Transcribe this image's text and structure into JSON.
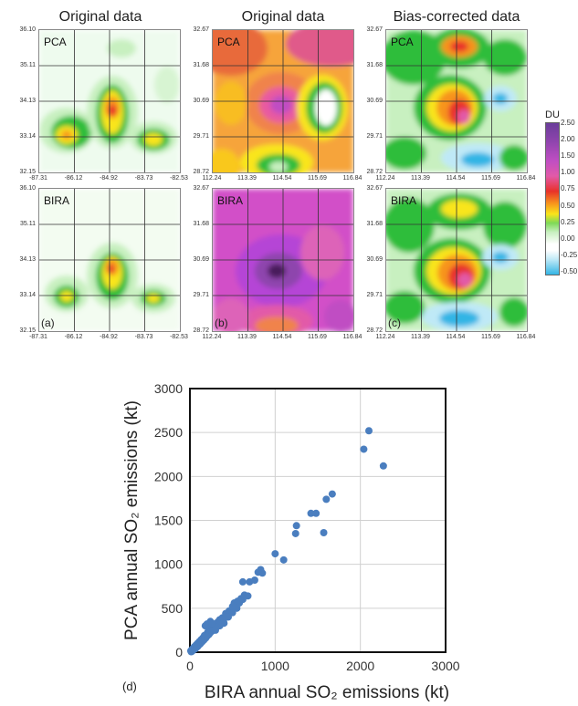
{
  "headers": {
    "col1": "Original data",
    "col2": "Original data",
    "col3": "Bias-corrected data"
  },
  "panels": [
    {
      "id": "a-pca",
      "label": "PCA",
      "letter": "",
      "yticks": [
        "36.10",
        "35.11",
        "34.13",
        "33.14",
        "32.15"
      ],
      "xticks": [
        "-87.31",
        "-86.12",
        "-84.92",
        "-83.73",
        "-82.53"
      ]
    },
    {
      "id": "a-bira",
      "label": "BIRA",
      "letter": "(a)",
      "yticks": [
        "36.10",
        "35.11",
        "34.13",
        "33.14",
        "32.15"
      ],
      "xticks": [
        "-87.31",
        "-86.12",
        "-84.92",
        "-83.73",
        "-82.53"
      ]
    },
    {
      "id": "b-pca",
      "label": "PCA",
      "letter": "",
      "yticks": [
        "32.67",
        "31.68",
        "30.69",
        "29.71",
        "28.72"
      ],
      "xticks": [
        "112.24",
        "113.39",
        "114.54",
        "115.69",
        "116.84"
      ]
    },
    {
      "id": "b-bira",
      "label": "BIRA",
      "letter": "(b)",
      "yticks": [
        "32.67",
        "31.68",
        "30.69",
        "29.71",
        "28.72"
      ],
      "xticks": [
        "112.24",
        "113.39",
        "114.54",
        "115.69",
        "116.84"
      ]
    },
    {
      "id": "c-pca",
      "label": "PCA",
      "letter": "",
      "yticks": [
        "32.67",
        "31.68",
        "30.69",
        "29.71",
        "28.72"
      ],
      "xticks": [
        "112.24",
        "113.39",
        "114.54",
        "115.69",
        "116.84"
      ]
    },
    {
      "id": "c-bira",
      "label": "BIRA",
      "letter": "(c)",
      "yticks": [
        "32.67",
        "31.68",
        "30.69",
        "29.71",
        "28.72"
      ],
      "xticks": [
        "112.24",
        "113.39",
        "114.54",
        "115.69",
        "116.84"
      ]
    }
  ],
  "colorbar": {
    "title": "DU",
    "ticks": [
      "2.50",
      "2.00",
      "1.50",
      "1.00",
      "0.75",
      "0.50",
      "0.25",
      "0.00",
      "-0.25",
      "-0.50"
    ]
  },
  "colors": {
    "purple": "#6a3d9a",
    "magenta": "#d24fc8",
    "red": "#e8312a",
    "orange": "#f7941d",
    "yellow": "#f9e51a",
    "green": "#2ebd3a",
    "lightgreen": "#c8f0c0",
    "white": "#ffffff",
    "cyan": "#33b5e5"
  },
  "chart_data": {
    "type": "scatter",
    "panel_letter": "(d)",
    "xlabel": "BIRA annual SO₂ emissions (kt)",
    "ylabel": "PCA annual SO₂ emissions (kt)",
    "xlim": [
      0,
      3000
    ],
    "ylim": [
      0,
      3000
    ],
    "xticks": [
      "0",
      "1000",
      "2000",
      "3000"
    ],
    "yticks": [
      "0",
      "500",
      "1000",
      "1500",
      "2000",
      "2500",
      "3000"
    ],
    "grid": true,
    "points": [
      [
        10,
        15
      ],
      [
        20,
        25
      ],
      [
        30,
        35
      ],
      [
        40,
        45
      ],
      [
        50,
        60
      ],
      [
        60,
        55
      ],
      [
        70,
        80
      ],
      [
        80,
        75
      ],
      [
        90,
        100
      ],
      [
        100,
        95
      ],
      [
        110,
        120
      ],
      [
        120,
        110
      ],
      [
        130,
        140
      ],
      [
        140,
        130
      ],
      [
        150,
        160
      ],
      [
        160,
        150
      ],
      [
        170,
        190
      ],
      [
        180,
        170
      ],
      [
        190,
        200
      ],
      [
        200,
        185
      ],
      [
        210,
        230
      ],
      [
        220,
        210
      ],
      [
        230,
        240
      ],
      [
        240,
        225
      ],
      [
        250,
        270
      ],
      [
        260,
        250
      ],
      [
        270,
        280
      ],
      [
        280,
        265
      ],
      [
        290,
        310
      ],
      [
        300,
        290
      ],
      [
        310,
        330
      ],
      [
        320,
        305
      ],
      [
        330,
        345
      ],
      [
        340,
        320
      ],
      [
        350,
        370
      ],
      [
        360,
        350
      ],
      [
        380,
        390
      ],
      [
        400,
        380
      ],
      [
        420,
        440
      ],
      [
        440,
        430
      ],
      [
        460,
        470
      ],
      [
        480,
        460
      ],
      [
        500,
        520
      ],
      [
        520,
        560
      ],
      [
        540,
        530
      ],
      [
        560,
        580
      ],
      [
        580,
        560
      ],
      [
        600,
        610
      ],
      [
        620,
        600
      ],
      [
        640,
        650
      ],
      [
        680,
        640
      ],
      [
        620,
        800
      ],
      [
        700,
        800
      ],
      [
        760,
        820
      ],
      [
        800,
        910
      ],
      [
        830,
        940
      ],
      [
        850,
        900
      ],
      [
        1000,
        1120
      ],
      [
        1100,
        1050
      ],
      [
        1240,
        1350
      ],
      [
        1250,
        1440
      ],
      [
        1420,
        1580
      ],
      [
        1480,
        1580
      ],
      [
        1570,
        1360
      ],
      [
        1600,
        1740
      ],
      [
        1670,
        1800
      ],
      [
        2040,
        2310
      ],
      [
        2100,
        2520
      ],
      [
        2270,
        2120
      ],
      [
        15,
        5
      ],
      [
        25,
        10
      ],
      [
        35,
        20
      ],
      [
        45,
        30
      ],
      [
        55,
        35
      ],
      [
        65,
        40
      ],
      [
        75,
        55
      ],
      [
        85,
        60
      ],
      [
        95,
        70
      ],
      [
        105,
        85
      ],
      [
        115,
        90
      ],
      [
        125,
        100
      ],
      [
        135,
        115
      ],
      [
        145,
        120
      ],
      [
        155,
        135
      ],
      [
        165,
        140
      ],
      [
        175,
        155
      ],
      [
        185,
        160
      ],
      [
        195,
        175
      ],
      [
        205,
        190
      ],
      [
        215,
        195
      ],
      [
        225,
        205
      ],
      [
        235,
        220
      ],
      [
        245,
        230
      ],
      [
        255,
        240
      ],
      [
        265,
        245
      ],
      [
        275,
        255
      ],
      [
        285,
        260
      ],
      [
        295,
        275
      ],
      [
        305,
        285
      ],
      [
        200,
        320
      ],
      [
        180,
        300
      ],
      [
        240,
        350
      ],
      [
        260,
        330
      ],
      [
        300,
        250
      ],
      [
        350,
        300
      ],
      [
        400,
        330
      ],
      [
        450,
        400
      ],
      [
        500,
        450
      ],
      [
        550,
        500
      ]
    ],
    "marker_color": "#4a7ebf"
  }
}
